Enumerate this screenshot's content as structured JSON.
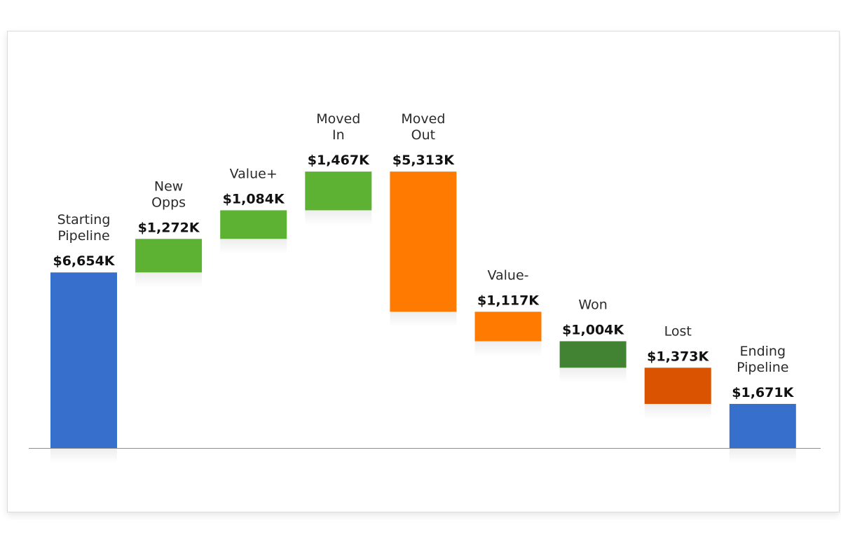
{
  "chart_data": {
    "type": "bar",
    "subtype": "waterfall",
    "unit": "$K",
    "grid": false,
    "legend": "none",
    "ylim": [
      0,
      10000
    ],
    "steps": [
      {
        "label_lines": [
          "Starting",
          "Pipeline"
        ],
        "value_label": "$6,654K",
        "value": 6654,
        "kind": "total",
        "color": "#3670CC"
      },
      {
        "label_lines": [
          "New",
          "Opps"
        ],
        "value_label": "$1,272K",
        "value": 1272,
        "kind": "increase",
        "color": "#5DB233"
      },
      {
        "label_lines": [
          "Value+"
        ],
        "value_label": "$1,084K",
        "value": 1084,
        "kind": "increase",
        "color": "#5DB233"
      },
      {
        "label_lines": [
          "Moved",
          "In"
        ],
        "value_label": "$1,467K",
        "value": 1467,
        "kind": "increase",
        "color": "#5DB233"
      },
      {
        "label_lines": [
          "Moved",
          "Out"
        ],
        "value_label": "$5,313K",
        "value": -5313,
        "kind": "decrease",
        "color": "#FF7A00"
      },
      {
        "label_lines": [
          "Value-"
        ],
        "value_label": "$1,117K",
        "value": -1117,
        "kind": "decrease",
        "color": "#FF7A00"
      },
      {
        "label_lines": [
          "Won"
        ],
        "value_label": "$1,004K",
        "value": -1004,
        "kind": "decrease",
        "color": "#418332"
      },
      {
        "label_lines": [
          "Lost"
        ],
        "value_label": "$1,373K",
        "value": -1373,
        "kind": "decrease",
        "color": "#D95300"
      },
      {
        "label_lines": [
          "Ending",
          "Pipeline"
        ],
        "value_label": "$1,671K",
        "value": 1671,
        "kind": "total",
        "color": "#3670CC"
      }
    ]
  }
}
